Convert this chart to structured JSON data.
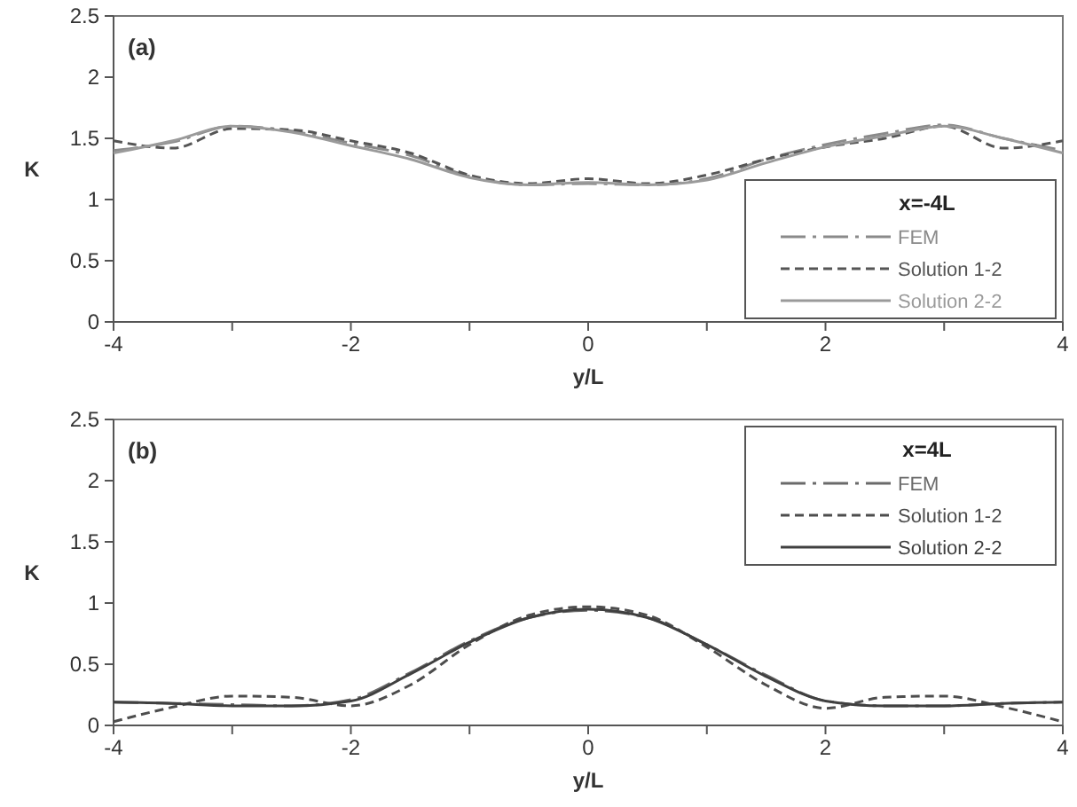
{
  "chart_data": [
    {
      "type": "line",
      "annotations": [
        "(a)"
      ],
      "xlabel": "y/L",
      "ylabel": "K",
      "legend_title": "x=-4L",
      "legend": "bottom right",
      "x": [
        -4,
        -3.5,
        -3,
        -2.5,
        -2,
        -1.5,
        -1,
        -0.5,
        0,
        0.5,
        1,
        1.5,
        2,
        2.5,
        3,
        3.5,
        4
      ],
      "series": [
        {
          "name": "FEM",
          "color": "#8a8a8a",
          "line_style": "dashdot",
          "values": [
            1.4,
            1.47,
            1.6,
            1.56,
            1.46,
            1.36,
            1.19,
            1.12,
            1.13,
            1.12,
            1.17,
            1.33,
            1.45,
            1.54,
            1.61,
            1.5,
            1.4
          ]
        },
        {
          "name": "Solution 1-2",
          "color": "#555555",
          "line_style": "dashed",
          "values": [
            1.48,
            1.42,
            1.58,
            1.57,
            1.48,
            1.38,
            1.2,
            1.13,
            1.17,
            1.13,
            1.2,
            1.33,
            1.43,
            1.5,
            1.6,
            1.42,
            1.48
          ]
        },
        {
          "name": "Solution 2-2",
          "color": "#9a9a9a",
          "line_style": "solid",
          "values": [
            1.38,
            1.48,
            1.6,
            1.55,
            1.44,
            1.33,
            1.18,
            1.12,
            1.14,
            1.12,
            1.16,
            1.3,
            1.43,
            1.52,
            1.6,
            1.5,
            1.38
          ]
        }
      ],
      "xlim": [
        -4,
        4
      ],
      "xticks": [
        -4,
        {
          "value": -3,
          "label": null
        },
        -2,
        {
          "value": -1,
          "label": null
        },
        0,
        {
          "value": 1,
          "label": null
        },
        2,
        {
          "value": 3,
          "label": null
        },
        4
      ],
      "ylim": [
        0,
        2.5
      ],
      "yticks": [
        0,
        0.5,
        1,
        1.5,
        2,
        2.5
      ],
      "grid": false
    },
    {
      "type": "line",
      "annotations": [
        "(b)"
      ],
      "xlabel": "y/L",
      "ylabel": "K",
      "legend_title": "x=4L",
      "legend": "top right",
      "x": [
        -4,
        -3.5,
        -3,
        -2.5,
        -2,
        -1.5,
        -1,
        -0.5,
        0,
        0.5,
        1,
        1.5,
        2,
        2.5,
        3,
        3.5,
        4
      ],
      "series": [
        {
          "name": "FEM",
          "color": "#6a6a6a",
          "line_style": "dashdot",
          "values": [
            0.19,
            0.18,
            0.17,
            0.16,
            0.21,
            0.43,
            0.69,
            0.88,
            0.94,
            0.88,
            0.66,
            0.41,
            0.2,
            0.16,
            0.16,
            0.18,
            0.19
          ]
        },
        {
          "name": "Solution 1-2",
          "color": "#4d4d4d",
          "line_style": "dashed",
          "values": [
            0.03,
            0.15,
            0.24,
            0.23,
            0.16,
            0.33,
            0.66,
            0.9,
            0.97,
            0.9,
            0.64,
            0.33,
            0.14,
            0.23,
            0.24,
            0.15,
            0.03
          ]
        },
        {
          "name": "Solution 2-2",
          "color": "#404040",
          "line_style": "solid",
          "values": [
            0.19,
            0.18,
            0.16,
            0.16,
            0.2,
            0.42,
            0.68,
            0.88,
            0.95,
            0.88,
            0.66,
            0.4,
            0.2,
            0.16,
            0.16,
            0.18,
            0.19
          ]
        }
      ],
      "xlim": [
        -4,
        4
      ],
      "xticks": [
        -4,
        {
          "value": -3,
          "label": null
        },
        -2,
        {
          "value": -1,
          "label": null
        },
        0,
        {
          "value": 1,
          "label": null
        },
        2,
        {
          "value": 3,
          "label": null
        },
        4
      ],
      "ylim": [
        0,
        2.5
      ],
      "yticks": [
        0,
        0.5,
        1,
        1.5,
        2,
        2.5
      ],
      "grid": false
    }
  ]
}
